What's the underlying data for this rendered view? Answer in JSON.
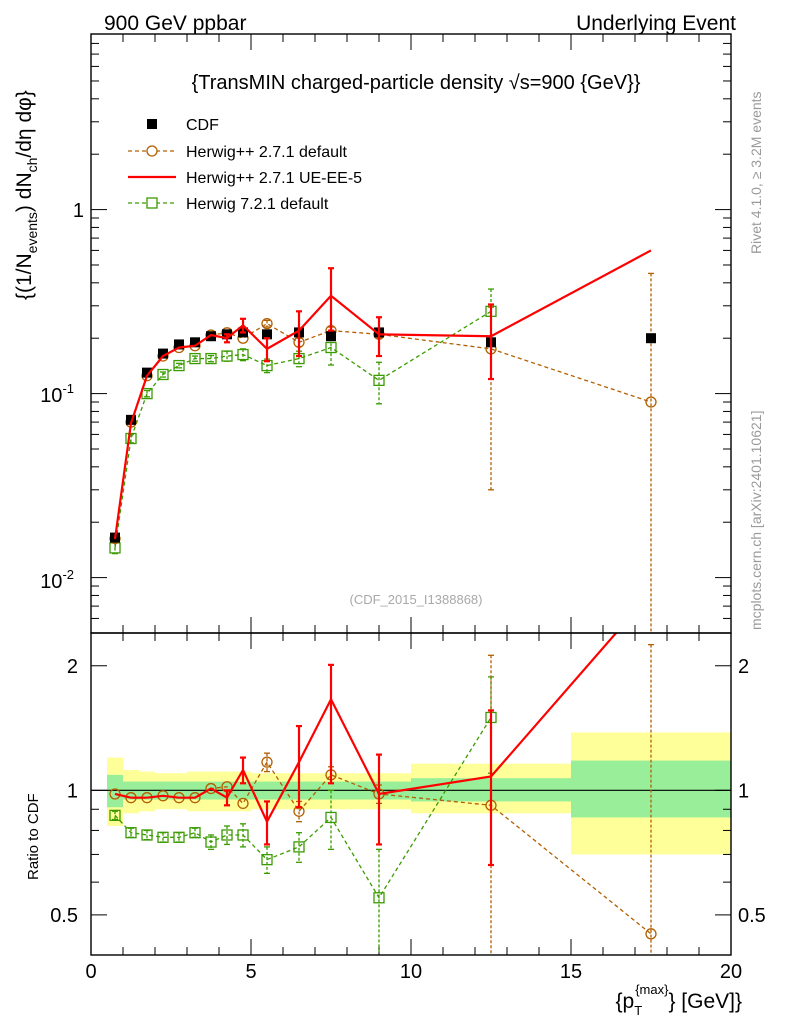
{
  "header": {
    "left": "900 GeV ppbar",
    "right": "Underlying Event"
  },
  "side_labels": {
    "rivet": "Rivet 4.1.0, ≥ 3.2M events",
    "mcplots": "mcplots.cern.ch [arXiv:2401.10621]"
  },
  "chart_data": {
    "type": "line",
    "title": "{TransMIN charged-particle density √s=900 {GeV}}",
    "analysis_id": "(CDF_2015_I1388868)",
    "xlabel": "{p_T^{max}} [GeV]",
    "xlabel_main": "{p",
    "xlabel_sub": "T",
    "xlabel_sup": "{max}",
    "xlabel_tail": "} [GeV]}",
    "ylabel": "{(1/N_events) dN_ch/dη dφ}",
    "ylabel_parts": {
      "a": "{(1/N",
      "b": "events",
      "c": ") dN",
      "d": "ch",
      "e": "/dη dφ}"
    },
    "ratio_ylabel": "Ratio to CDF",
    "xlim": [
      0,
      20
    ],
    "ylim": [
      0.005,
      9
    ],
    "ratio_ylim": [
      0.4,
      2.4
    ],
    "xticks": [
      0,
      5,
      10,
      15,
      20
    ],
    "xtick_labels": [
      "0",
      "5",
      "10",
      "15",
      "20"
    ],
    "ytick_labels": {
      "major": [
        "1",
        "10",
        "10"
      ],
      "exp": [
        "-1",
        "-2"
      ]
    },
    "ratio_ticks": [
      0.5,
      1,
      2
    ],
    "ratio_tick_labels": [
      "0.5",
      "1",
      "2"
    ],
    "legend": [
      "CDF",
      "Herwig++ 2.7.1 default",
      "Herwig++ 2.7.1 UE-EE-5",
      "Herwig 7.2.1 default"
    ],
    "series": [
      {
        "name": "CDF",
        "color": "#000000",
        "style": "square-marker",
        "x": [
          0.75,
          1.25,
          1.75,
          2.25,
          2.75,
          3.25,
          3.75,
          4.25,
          4.75,
          5.5,
          6.5,
          7.5,
          9.0,
          12.5,
          17.5
        ],
        "y": [
          0.0165,
          0.072,
          0.13,
          0.165,
          0.185,
          0.19,
          0.205,
          0.21,
          0.215,
          0.21,
          0.215,
          0.205,
          0.215,
          0.19,
          0.2
        ]
      },
      {
        "name": "Herwig++ 2.7.1 default",
        "color": "#b25f00",
        "style": "dashed-open-circle",
        "x": [
          0.75,
          1.25,
          1.75,
          2.25,
          2.75,
          3.25,
          3.75,
          4.25,
          4.75,
          5.5,
          6.5,
          7.5,
          9.0,
          12.5,
          17.5
        ],
        "y": [
          0.0163,
          0.07,
          0.125,
          0.16,
          0.178,
          0.182,
          0.208,
          0.214,
          0.2,
          0.24,
          0.19,
          0.22,
          0.21,
          0.175,
          0.09
        ],
        "err_lo": [
          0,
          0,
          0,
          0,
          0,
          0,
          0,
          0,
          0,
          0.01,
          0.01,
          0.01,
          0.01,
          0.145,
          0.09
        ],
        "err_hi": [
          0,
          0,
          0,
          0,
          0,
          0,
          0,
          0,
          0,
          0.01,
          0.01,
          0.01,
          0.01,
          0.12,
          0.36
        ]
      },
      {
        "name": "Herwig++ 2.7.1 UE-EE-5",
        "color": "#ff0000",
        "style": "solid-line",
        "x": [
          0.75,
          1.25,
          1.75,
          2.25,
          2.75,
          3.25,
          3.75,
          4.25,
          4.75,
          5.5,
          6.5,
          7.5,
          9.0,
          12.5,
          17.5
        ],
        "y": [
          0.0162,
          0.069,
          0.125,
          0.16,
          0.178,
          0.182,
          0.208,
          0.2,
          0.235,
          0.175,
          0.22,
          0.34,
          0.21,
          0.205,
          0.6
        ],
        "err_lo": [
          0,
          0,
          0,
          0,
          0,
          0,
          0,
          0.01,
          0.02,
          0.025,
          0.06,
          0.12,
          0.05,
          0.085,
          0
        ],
        "err_hi": [
          0,
          0,
          0,
          0,
          0,
          0,
          0,
          0.01,
          0.02,
          0.025,
          0.06,
          0.14,
          0.05,
          0.1,
          0
        ]
      },
      {
        "name": "Herwig 7.2.1 default",
        "color": "#3a9c00",
        "style": "dashed-open-square",
        "x": [
          0.75,
          1.25,
          1.75,
          2.25,
          2.75,
          3.25,
          3.75,
          4.25,
          4.75,
          5.5,
          6.5,
          7.5,
          9.0,
          12.5,
          17.5
        ],
        "y": [
          0.0145,
          0.057,
          0.1,
          0.127,
          0.142,
          0.155,
          0.155,
          0.16,
          0.163,
          0.142,
          0.155,
          0.178,
          0.118,
          0.28,
          null
        ],
        "err_lo": [
          0.001,
          0.003,
          0.004,
          0.004,
          0.004,
          0.005,
          0.006,
          0.01,
          0.012,
          0.012,
          0.015,
          0.035,
          0.03,
          0.1,
          0
        ],
        "err_hi": [
          0.001,
          0.003,
          0.004,
          0.004,
          0.004,
          0.005,
          0.006,
          0.01,
          0.012,
          0.012,
          0.015,
          0.035,
          0.03,
          0.09,
          0
        ]
      }
    ],
    "ratio_series": [
      {
        "name": "Herwig++ 2.7.1 default",
        "x": [
          0.75,
          1.25,
          1.75,
          2.25,
          2.75,
          3.25,
          3.75,
          4.25,
          4.75,
          5.5,
          6.5,
          7.5,
          9.0,
          12.5,
          17.5
        ],
        "y": [
          0.98,
          0.96,
          0.96,
          0.97,
          0.96,
          0.96,
          1.01,
          1.02,
          0.93,
          1.17,
          0.89,
          1.09,
          0.98,
          0.92,
          0.45
        ],
        "err_lo": [
          0,
          0,
          0,
          0,
          0,
          0,
          0,
          0,
          0,
          0.06,
          0.05,
          0.05,
          0.05,
          0.6,
          0.1
        ],
        "err_hi": [
          0,
          0,
          0,
          0,
          0,
          0,
          0,
          0,
          0,
          0.06,
          0.05,
          0.05,
          0.05,
          1.2,
          1.8
        ]
      },
      {
        "name": "Herwig++ 2.7.1 UE-EE-5",
        "x": [
          0.75,
          1.25,
          1.75,
          2.25,
          2.75,
          3.25,
          3.75,
          4.25,
          4.75,
          5.5,
          6.5,
          7.5,
          9.0,
          12.5,
          17.5
        ],
        "y": [
          0.98,
          0.96,
          0.96,
          0.97,
          0.96,
          0.96,
          1.01,
          0.96,
          1.12,
          0.84,
          1.17,
          1.66,
          0.98,
          1.08,
          3.0
        ],
        "err_lo": [
          0,
          0,
          0,
          0,
          0,
          0,
          0,
          0.04,
          0.08,
          0.1,
          0.26,
          0.62,
          0.24,
          0.42,
          0
        ],
        "err_hi": [
          0,
          0,
          0,
          0,
          0,
          0,
          0,
          0.04,
          0.08,
          0.1,
          0.26,
          0.35,
          0.24,
          0.48,
          0
        ]
      },
      {
        "name": "Herwig 7.2.1 default",
        "x": [
          0.75,
          1.25,
          1.75,
          2.25,
          2.75,
          3.25,
          3.75,
          4.25,
          4.75,
          5.5,
          6.5,
          7.5,
          9.0,
          12.5,
          17.5
        ],
        "y": [
          0.87,
          0.79,
          0.78,
          0.77,
          0.77,
          0.79,
          0.75,
          0.78,
          0.78,
          0.68,
          0.73,
          0.86,
          0.55,
          1.5,
          null
        ],
        "err_lo": [
          0.02,
          0.02,
          0.02,
          0.02,
          0.02,
          0.02,
          0.03,
          0.04,
          0.05,
          0.05,
          0.06,
          0.14,
          0.17,
          0.4,
          0
        ],
        "err_hi": [
          0.02,
          0.02,
          0.02,
          0.02,
          0.02,
          0.02,
          0.03,
          0.04,
          0.05,
          0.05,
          0.06,
          0.14,
          0.17,
          0.38,
          0
        ]
      }
    ],
    "data_errors": {
      "lo": [
        0.001,
        0.002,
        0.003,
        0.004,
        0.004,
        0.005,
        0.006,
        0.008,
        0.01,
        0.01,
        0.015,
        0.02,
        0.015,
        0.015,
        0.012
      ],
      "hi": [
        0.001,
        0.002,
        0.003,
        0.004,
        0.004,
        0.005,
        0.006,
        0.008,
        0.01,
        0.01,
        0.015,
        0.02,
        0.015,
        0.015,
        0.012
      ]
    },
    "uncertainty_bands": {
      "bins": [
        [
          0.5,
          1.0
        ],
        [
          1.0,
          1.5
        ],
        [
          1.5,
          2.0
        ],
        [
          2.0,
          2.5
        ],
        [
          2.5,
          3.0
        ],
        [
          3.0,
          3.5
        ],
        [
          3.5,
          4.0
        ],
        [
          4.0,
          4.5
        ],
        [
          4.5,
          5.0
        ],
        [
          5.0,
          6.0
        ],
        [
          6.0,
          7.0
        ],
        [
          7.0,
          8.0
        ],
        [
          8.0,
          10.0
        ],
        [
          10.0,
          15.0
        ],
        [
          15.0,
          20.0
        ]
      ],
      "stat": [
        [
          0.91,
          1.09
        ],
        [
          0.95,
          1.05
        ],
        [
          0.95,
          1.05
        ],
        [
          0.95,
          1.05
        ],
        [
          0.95,
          1.05
        ],
        [
          0.95,
          1.05
        ],
        [
          0.95,
          1.05
        ],
        [
          0.95,
          1.05
        ],
        [
          0.95,
          1.05
        ],
        [
          0.95,
          1.05
        ],
        [
          0.95,
          1.05
        ],
        [
          0.95,
          1.05
        ],
        [
          0.95,
          1.05
        ],
        [
          0.94,
          1.07
        ],
        [
          0.86,
          1.18
        ]
      ],
      "total": [
        [
          0.82,
          1.2
        ],
        [
          0.88,
          1.12
        ],
        [
          0.89,
          1.11
        ],
        [
          0.9,
          1.1
        ],
        [
          0.9,
          1.1
        ],
        [
          0.89,
          1.11
        ],
        [
          0.89,
          1.11
        ],
        [
          0.89,
          1.11
        ],
        [
          0.89,
          1.11
        ],
        [
          0.9,
          1.1
        ],
        [
          0.9,
          1.1
        ],
        [
          0.9,
          1.1
        ],
        [
          0.9,
          1.1
        ],
        [
          0.88,
          1.16
        ],
        [
          0.7,
          1.38
        ]
      ],
      "colors": {
        "stat": "#99ee99",
        "total": "#ffff99"
      }
    }
  }
}
